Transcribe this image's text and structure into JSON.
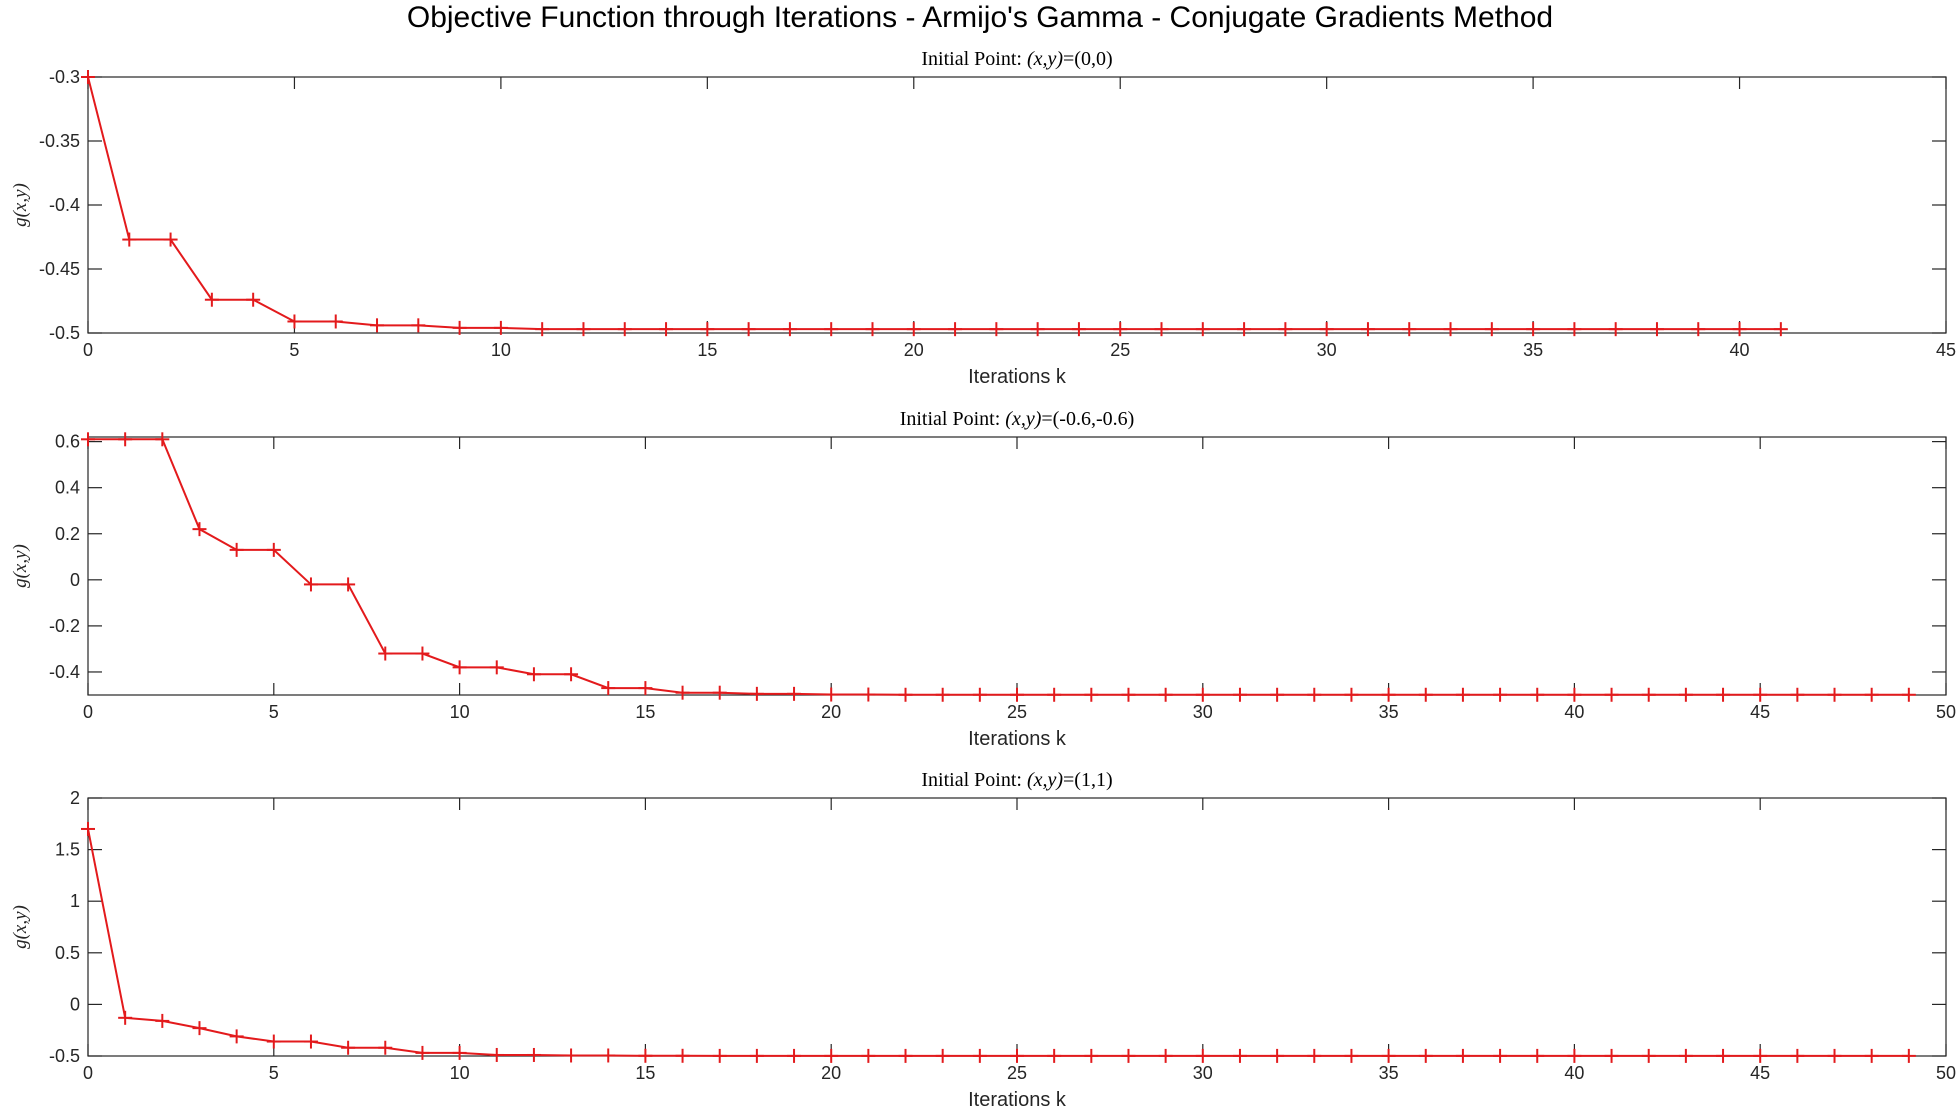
{
  "figure_title": "Objective Function through Iterations - Armijo's Gamma - Conjugate Gradients Method",
  "chart_data": [
    {
      "type": "line",
      "title_prefix": "Initial Point: ",
      "title_math": "(x,y)",
      "title_value": "=(0,0)",
      "xlabel": "Iterations k",
      "ylabel": "g(x,y)",
      "xlim": [
        0,
        45
      ],
      "ylim": [
        -0.5,
        -0.3
      ],
      "xticks": [
        0,
        5,
        10,
        15,
        20,
        25,
        30,
        35,
        40,
        45
      ],
      "yticks": [
        -0.3,
        -0.35,
        -0.4,
        -0.45,
        -0.5
      ],
      "series_color": "#e31a1c",
      "marker": "+",
      "x": [
        0,
        1,
        2,
        3,
        4,
        5,
        6,
        7,
        8,
        9,
        10,
        11,
        12,
        13,
        14,
        15,
        16,
        17,
        18,
        19,
        20,
        21,
        22,
        23,
        24,
        25,
        26,
        27,
        28,
        29,
        30,
        31,
        32,
        33,
        34,
        35,
        36,
        37,
        38,
        39,
        40,
        41
      ],
      "values": [
        -0.3,
        -0.427,
        -0.427,
        -0.474,
        -0.474,
        -0.491,
        -0.491,
        -0.494,
        -0.494,
        -0.496,
        -0.496,
        -0.497,
        -0.497,
        -0.497,
        -0.497,
        -0.497,
        -0.497,
        -0.497,
        -0.497,
        -0.497,
        -0.497,
        -0.497,
        -0.497,
        -0.497,
        -0.497,
        -0.497,
        -0.497,
        -0.497,
        -0.497,
        -0.497,
        -0.497,
        -0.497,
        -0.497,
        -0.497,
        -0.497,
        -0.497,
        -0.497,
        -0.497,
        -0.497,
        -0.497,
        -0.497,
        -0.497
      ]
    },
    {
      "type": "line",
      "title_prefix": "Initial Point: ",
      "title_math": "(x,y)",
      "title_value": "=(-0.6,-0.6)",
      "xlabel": "Iterations k",
      "ylabel": "g(x,y)",
      "xlim": [
        0,
        50
      ],
      "ylim": [
        -0.5,
        0.62
      ],
      "xticks": [
        0,
        5,
        10,
        15,
        20,
        25,
        30,
        35,
        40,
        45,
        50
      ],
      "yticks": [
        0.6,
        0.4,
        0.2,
        0,
        -0.2,
        -0.4
      ],
      "series_color": "#e31a1c",
      "marker": "+",
      "x": [
        0,
        1,
        2,
        3,
        4,
        5,
        6,
        7,
        8,
        9,
        10,
        11,
        12,
        13,
        14,
        15,
        16,
        17,
        18,
        19,
        20,
        21,
        22,
        23,
        24,
        25,
        26,
        27,
        28,
        29,
        30,
        31,
        32,
        33,
        34,
        35,
        36,
        37,
        38,
        39,
        40,
        41,
        42,
        43,
        44,
        45,
        46,
        47,
        48,
        49
      ],
      "values": [
        0.61,
        0.61,
        0.61,
        0.22,
        0.13,
        0.13,
        -0.02,
        -0.02,
        -0.32,
        -0.32,
        -0.38,
        -0.38,
        -0.41,
        -0.41,
        -0.47,
        -0.47,
        -0.49,
        -0.49,
        -0.495,
        -0.495,
        -0.498,
        -0.498,
        -0.499,
        -0.499,
        -0.499,
        -0.499,
        -0.499,
        -0.499,
        -0.499,
        -0.499,
        -0.499,
        -0.499,
        -0.499,
        -0.499,
        -0.499,
        -0.499,
        -0.499,
        -0.499,
        -0.499,
        -0.499,
        -0.499,
        -0.499,
        -0.499,
        -0.499,
        -0.499,
        -0.499,
        -0.499,
        -0.499,
        -0.499,
        -0.499
      ]
    },
    {
      "type": "line",
      "title_prefix": "Initial Point: ",
      "title_math": "(x,y)",
      "title_value": "=(1,1)",
      "xlabel": "Iterations k",
      "ylabel": "g(x,y)",
      "xlim": [
        0,
        50
      ],
      "ylim": [
        -0.5,
        2
      ],
      "xticks": [
        0,
        5,
        10,
        15,
        20,
        25,
        30,
        35,
        40,
        45,
        50
      ],
      "yticks": [
        2,
        1.5,
        1,
        0.5,
        0,
        -0.5
      ],
      "series_color": "#e31a1c",
      "marker": "+",
      "x": [
        0,
        1,
        2,
        3,
        4,
        5,
        6,
        7,
        8,
        9,
        10,
        11,
        12,
        13,
        14,
        15,
        16,
        17,
        18,
        19,
        20,
        21,
        22,
        23,
        24,
        25,
        26,
        27,
        28,
        29,
        30,
        31,
        32,
        33,
        34,
        35,
        36,
        37,
        38,
        39,
        40,
        41,
        42,
        43,
        44,
        45,
        46,
        47,
        48,
        49
      ],
      "values": [
        1.7,
        -0.13,
        -0.16,
        -0.23,
        -0.31,
        -0.36,
        -0.36,
        -0.42,
        -0.42,
        -0.47,
        -0.47,
        -0.49,
        -0.49,
        -0.495,
        -0.495,
        -0.498,
        -0.498,
        -0.499,
        -0.499,
        -0.499,
        -0.499,
        -0.499,
        -0.499,
        -0.499,
        -0.499,
        -0.499,
        -0.499,
        -0.499,
        -0.499,
        -0.499,
        -0.499,
        -0.499,
        -0.499,
        -0.499,
        -0.499,
        -0.499,
        -0.499,
        -0.499,
        -0.499,
        -0.499,
        -0.499,
        -0.499,
        -0.499,
        -0.499,
        -0.499,
        -0.499,
        -0.499,
        -0.499,
        -0.499,
        -0.499
      ]
    }
  ]
}
